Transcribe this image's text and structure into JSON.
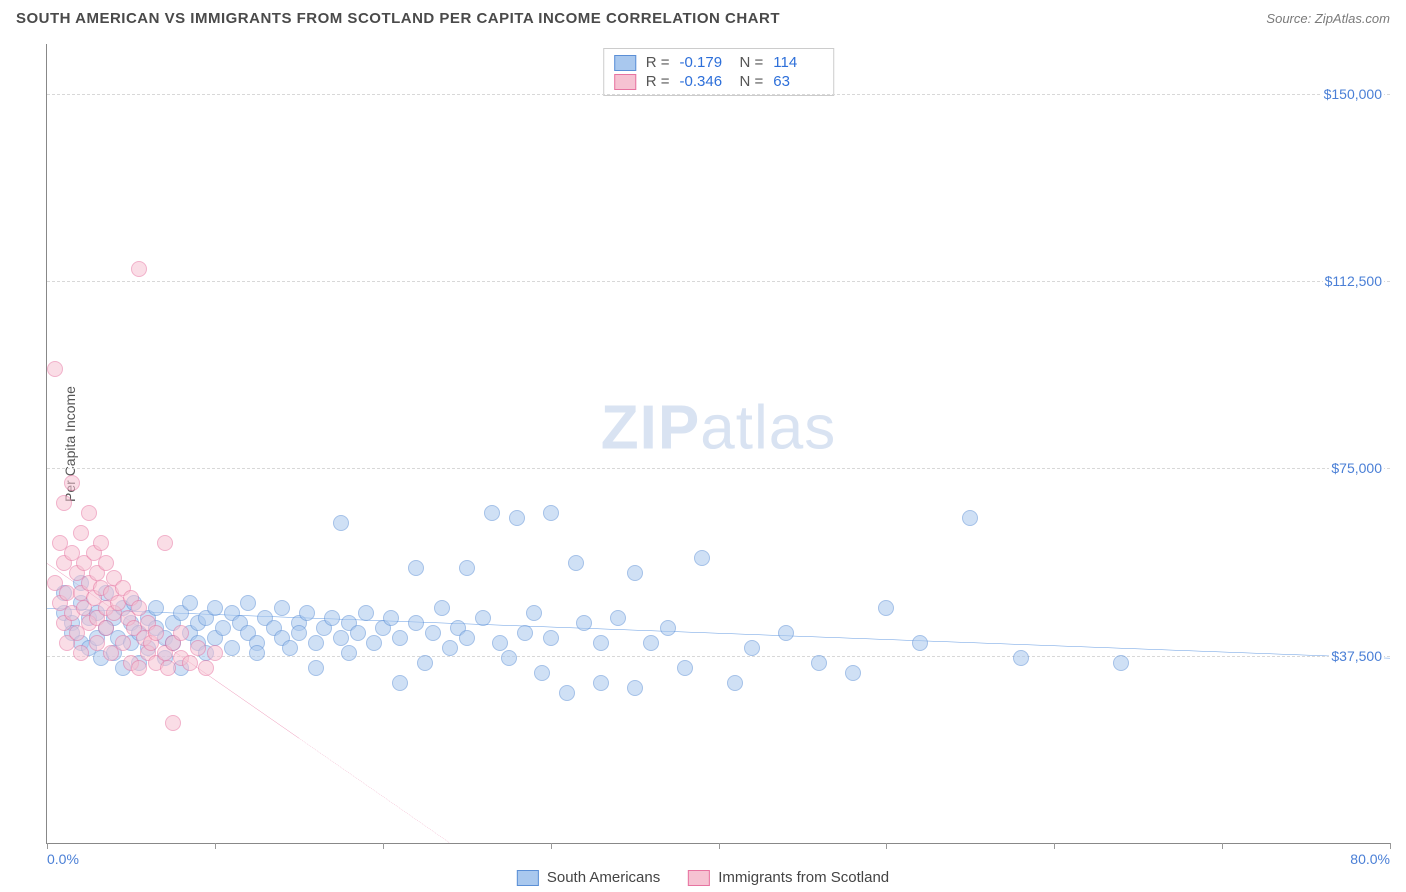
{
  "header": {
    "title": "SOUTH AMERICAN VS IMMIGRANTS FROM SCOTLAND PER CAPITA INCOME CORRELATION CHART",
    "source_label": "Source:",
    "source_name": "ZipAtlas.com"
  },
  "watermark": {
    "part1": "ZIP",
    "part2": "atlas"
  },
  "chart": {
    "type": "scatter",
    "ylabel": "Per Capita Income",
    "xlim": [
      0,
      80
    ],
    "ylim": [
      0,
      160000
    ],
    "x_ticks": [
      0,
      10,
      20,
      30,
      40,
      50,
      60,
      70,
      80
    ],
    "x_tick_labels": {
      "0": "0.0%",
      "80": "80.0%"
    },
    "y_ticks": [
      37500,
      75000,
      112500,
      150000
    ],
    "y_tick_labels": [
      "$37,500",
      "$75,000",
      "$112,500",
      "$150,000"
    ],
    "background_color": "#ffffff",
    "grid_color": "#d8d8d8",
    "axis_color": "#888888",
    "tick_label_color": "#4a7fd6",
    "marker_radius": 8,
    "marker_opacity": 0.55,
    "series": [
      {
        "name": "South Americans",
        "fill": "#a9c8ee",
        "stroke": "#5b8fd6",
        "trend_color": "#1f6fd6",
        "trend": {
          "x1": 0,
          "y1": 47000,
          "x2": 80,
          "y2": 37000
        },
        "dash_after_x": null,
        "r_value": "-0.179",
        "n_value": "114",
        "points": [
          [
            1,
            46000
          ],
          [
            1,
            50000
          ],
          [
            1.5,
            44000
          ],
          [
            1.5,
            42000
          ],
          [
            2,
            48000
          ],
          [
            2,
            40000
          ],
          [
            2,
            52000
          ],
          [
            2.5,
            45000
          ],
          [
            2.5,
            39000
          ],
          [
            3,
            46000
          ],
          [
            3,
            41000
          ],
          [
            3.2,
            37000
          ],
          [
            3.5,
            50000
          ],
          [
            3.5,
            43000
          ],
          [
            4,
            45000
          ],
          [
            4,
            38000
          ],
          [
            4.2,
            41000
          ],
          [
            4.5,
            47000
          ],
          [
            4.5,
            35000
          ],
          [
            5,
            44000
          ],
          [
            5,
            40000
          ],
          [
            5.2,
            48000
          ],
          [
            5.5,
            42000
          ],
          [
            5.5,
            36000
          ],
          [
            6,
            45000
          ],
          [
            6,
            39000
          ],
          [
            6.5,
            43000
          ],
          [
            6.5,
            47000
          ],
          [
            7,
            41000
          ],
          [
            7,
            37000
          ],
          [
            7.5,
            44000
          ],
          [
            7.5,
            40000
          ],
          [
            8,
            46000
          ],
          [
            8,
            35000
          ],
          [
            8.5,
            42000
          ],
          [
            8.5,
            48000
          ],
          [
            9,
            40000
          ],
          [
            9,
            44000
          ],
          [
            9.5,
            38000
          ],
          [
            9.5,
            45000
          ],
          [
            10,
            47000
          ],
          [
            10,
            41000
          ],
          [
            10.5,
            43000
          ],
          [
            11,
            46000
          ],
          [
            11,
            39000
          ],
          [
            11.5,
            44000
          ],
          [
            12,
            42000
          ],
          [
            12,
            48000
          ],
          [
            12.5,
            40000
          ],
          [
            12.5,
            38000
          ],
          [
            13,
            45000
          ],
          [
            13.5,
            43000
          ],
          [
            14,
            41000
          ],
          [
            14,
            47000
          ],
          [
            14.5,
            39000
          ],
          [
            15,
            44000
          ],
          [
            15,
            42000
          ],
          [
            15.5,
            46000
          ],
          [
            16,
            40000
          ],
          [
            16,
            35000
          ],
          [
            16.5,
            43000
          ],
          [
            17,
            45000
          ],
          [
            17.5,
            41000
          ],
          [
            17.5,
            64000
          ],
          [
            18,
            38000
          ],
          [
            18,
            44000
          ],
          [
            18.5,
            42000
          ],
          [
            19,
            46000
          ],
          [
            19.5,
            40000
          ],
          [
            20,
            43000
          ],
          [
            20.5,
            45000
          ],
          [
            21,
            32000
          ],
          [
            21,
            41000
          ],
          [
            22,
            44000
          ],
          [
            22,
            55000
          ],
          [
            22.5,
            36000
          ],
          [
            23,
            42000
          ],
          [
            23.5,
            47000
          ],
          [
            24,
            39000
          ],
          [
            24.5,
            43000
          ],
          [
            25,
            55000
          ],
          [
            25,
            41000
          ],
          [
            26,
            45000
          ],
          [
            26.5,
            66000
          ],
          [
            27,
            40000
          ],
          [
            27.5,
            37000
          ],
          [
            28,
            65000
          ],
          [
            28.5,
            42000
          ],
          [
            29,
            46000
          ],
          [
            29.5,
            34000
          ],
          [
            30,
            66000
          ],
          [
            30,
            41000
          ],
          [
            31,
            30000
          ],
          [
            31.5,
            56000
          ],
          [
            32,
            44000
          ],
          [
            33,
            32000
          ],
          [
            33,
            40000
          ],
          [
            34,
            45000
          ],
          [
            35,
            54000
          ],
          [
            35,
            31000
          ],
          [
            36,
            40000
          ],
          [
            37,
            43000
          ],
          [
            38,
            35000
          ],
          [
            39,
            57000
          ],
          [
            41,
            32000
          ],
          [
            42,
            39000
          ],
          [
            44,
            42000
          ],
          [
            46,
            36000
          ],
          [
            48,
            34000
          ],
          [
            50,
            47000
          ],
          [
            52,
            40000
          ],
          [
            55,
            65000
          ],
          [
            58,
            37000
          ],
          [
            64,
            36000
          ]
        ]
      },
      {
        "name": "Immigrants from Scotland",
        "fill": "#f6c2d2",
        "stroke": "#e773a0",
        "trend_color": "#e04e86",
        "trend": {
          "x1": 0,
          "y1": 56000,
          "x2": 24,
          "y2": 0
        },
        "dash_after_x": 15,
        "r_value": "-0.346",
        "n_value": "63",
        "points": [
          [
            0.5,
            95000
          ],
          [
            0.5,
            52000
          ],
          [
            0.8,
            48000
          ],
          [
            0.8,
            60000
          ],
          [
            1,
            56000
          ],
          [
            1,
            44000
          ],
          [
            1,
            68000
          ],
          [
            1.2,
            50000
          ],
          [
            1.2,
            40000
          ],
          [
            1.5,
            58000
          ],
          [
            1.5,
            46000
          ],
          [
            1.5,
            72000
          ],
          [
            1.8,
            54000
          ],
          [
            1.8,
            42000
          ],
          [
            2,
            50000
          ],
          [
            2,
            62000
          ],
          [
            2,
            38000
          ],
          [
            2.2,
            56000
          ],
          [
            2.2,
            47000
          ],
          [
            2.5,
            52000
          ],
          [
            2.5,
            44000
          ],
          [
            2.5,
            66000
          ],
          [
            2.8,
            49000
          ],
          [
            2.8,
            58000
          ],
          [
            3,
            45000
          ],
          [
            3,
            54000
          ],
          [
            3,
            40000
          ],
          [
            3.2,
            51000
          ],
          [
            3.2,
            60000
          ],
          [
            3.5,
            47000
          ],
          [
            3.5,
            43000
          ],
          [
            3.5,
            56000
          ],
          [
            3.8,
            50000
          ],
          [
            3.8,
            38000
          ],
          [
            4,
            53000
          ],
          [
            4,
            46000
          ],
          [
            4.2,
            48000
          ],
          [
            4.5,
            51000
          ],
          [
            4.5,
            40000
          ],
          [
            4.8,
            45000
          ],
          [
            5,
            49000
          ],
          [
            5,
            36000
          ],
          [
            5.2,
            43000
          ],
          [
            5.5,
            47000
          ],
          [
            5.5,
            35000
          ],
          [
            5.8,
            41000
          ],
          [
            5.5,
            115000
          ],
          [
            6,
            44000
          ],
          [
            6,
            38000
          ],
          [
            6.2,
            40000
          ],
          [
            6.5,
            36000
          ],
          [
            6.5,
            42000
          ],
          [
            7,
            60000
          ],
          [
            7,
            38000
          ],
          [
            7.2,
            35000
          ],
          [
            7.5,
            40000
          ],
          [
            7.5,
            24000
          ],
          [
            8,
            37000
          ],
          [
            8,
            42000
          ],
          [
            8.5,
            36000
          ],
          [
            9,
            39000
          ],
          [
            9.5,
            35000
          ],
          [
            10,
            38000
          ]
        ]
      }
    ],
    "stats_box": {
      "r_label": "R =",
      "n_label": "N ="
    },
    "legend_bottom_labels": [
      "South Americans",
      "Immigrants from Scotland"
    ]
  }
}
